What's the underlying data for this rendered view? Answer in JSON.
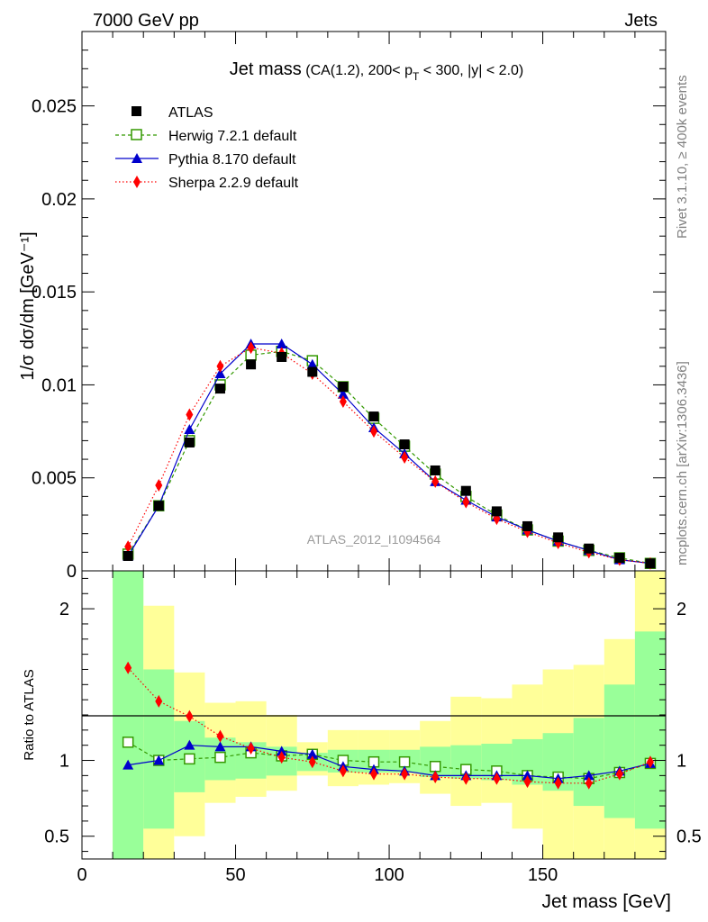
{
  "header": {
    "left": "7000 GeV pp",
    "right": "Jets"
  },
  "side_labels": {
    "rivet": "Rivet 3.1.10, ≥ 400k events",
    "mcplots": "mcplots.cern.ch [arXiv:1306.3436]"
  },
  "colors": {
    "atlas": "#000000",
    "herwig": "#339900",
    "pythia": "#0000cc",
    "sherpa": "#ff0000",
    "band_green": "#99ff99",
    "band_yellow": "#ffff99"
  },
  "chart_data": [
    {
      "type": "scatter",
      "title_main": "Jet mass",
      "title_cut_1": "(CA(1.2), 200< p",
      "title_cut_sub": "T",
      "title_cut_2": " < 300, |y| < 2.0)",
      "ylabel": "1/σ dσ/dm [GeV⁻¹]",
      "watermark": "ATLAS_2012_I1094564",
      "xlim": [
        0,
        190
      ],
      "ylim": [
        0,
        0.029
      ],
      "yticks": [
        {
          "v": 0,
          "label": "0"
        },
        {
          "v": 0.005,
          "label": "0.005"
        },
        {
          "v": 0.01,
          "label": "0.01"
        },
        {
          "v": 0.015,
          "label": "0.015"
        },
        {
          "v": 0.02,
          "label": "0.02"
        },
        {
          "v": 0.025,
          "label": "0.025"
        }
      ],
      "legend_position": "top-left",
      "x": [
        15,
        25,
        35,
        45,
        55,
        65,
        75,
        85,
        95,
        105,
        115,
        125,
        135,
        145,
        155,
        165,
        175,
        185
      ],
      "series": [
        {
          "name": "ATLAS",
          "style": "data",
          "values": [
            0.0008,
            0.0035,
            0.0069,
            0.0098,
            0.0111,
            0.0115,
            0.0107,
            0.0099,
            0.0083,
            0.0068,
            0.0054,
            0.0043,
            0.0032,
            0.0024,
            0.0018,
            0.0012,
            0.0007,
            0.0004
          ]
        },
        {
          "name": "Herwig 7.2.1 default",
          "style": "herwig",
          "values": [
            0.0009,
            0.0035,
            0.007,
            0.01,
            0.0116,
            0.0118,
            0.0113,
            0.0099,
            0.0082,
            0.0067,
            0.0052,
            0.004,
            0.003,
            0.0022,
            0.0016,
            0.0011,
            0.0007,
            0.0004
          ]
        },
        {
          "name": "Pythia 8.170 default",
          "style": "pythia",
          "values": [
            0.0008,
            0.0035,
            0.0076,
            0.0106,
            0.0122,
            0.0122,
            0.0111,
            0.0095,
            0.0077,
            0.0063,
            0.0048,
            0.0038,
            0.0029,
            0.0022,
            0.0016,
            0.0011,
            0.0006,
            0.0004
          ]
        },
        {
          "name": "Sherpa 2.2.9 default",
          "style": "sherpa",
          "values": [
            0.0013,
            0.0046,
            0.0084,
            0.011,
            0.012,
            0.0117,
            0.0106,
            0.0091,
            0.0075,
            0.0061,
            0.0048,
            0.0037,
            0.0028,
            0.0021,
            0.0015,
            0.001,
            0.0006,
            0.0004
          ]
        }
      ]
    },
    {
      "type": "line",
      "ylabel": "Ratio to ATLAS",
      "xlabel": "Jet mass [GeV]",
      "xlim": [
        0,
        190
      ],
      "ylim": [
        0.35,
        2.25
      ],
      "xticks": [
        {
          "v": 0,
          "label": "0"
        },
        {
          "v": 50,
          "label": "50"
        },
        {
          "v": 100,
          "label": "100"
        },
        {
          "v": 150,
          "label": "150"
        }
      ],
      "yticks": [
        {
          "v": 0.5,
          "label": "0.5"
        },
        {
          "v": 1,
          "label": "1"
        },
        {
          "v": 2,
          "label": "2"
        }
      ],
      "bins": [
        [
          10,
          20
        ],
        [
          20,
          30
        ],
        [
          30,
          40
        ],
        [
          40,
          50
        ],
        [
          50,
          60
        ],
        [
          60,
          70
        ],
        [
          70,
          80
        ],
        [
          80,
          90
        ],
        [
          90,
          100
        ],
        [
          100,
          110
        ],
        [
          110,
          120
        ],
        [
          120,
          130
        ],
        [
          130,
          140
        ],
        [
          140,
          150
        ],
        [
          150,
          160
        ],
        [
          160,
          170
        ],
        [
          170,
          180
        ],
        [
          180,
          190
        ]
      ],
      "band_green": [
        [
          0.35,
          2.25
        ],
        [
          0.55,
          1.6
        ],
        [
          0.79,
          1.26
        ],
        [
          0.87,
          1.15
        ],
        [
          0.88,
          1.12
        ],
        [
          0.9,
          1.09
        ],
        [
          0.93,
          1.05
        ],
        [
          0.92,
          1.07
        ],
        [
          0.92,
          1.07
        ],
        [
          0.92,
          1.07
        ],
        [
          0.89,
          1.09
        ],
        [
          0.88,
          1.1
        ],
        [
          0.87,
          1.11
        ],
        [
          0.84,
          1.14
        ],
        [
          0.8,
          1.18
        ],
        [
          0.7,
          1.28
        ],
        [
          0.62,
          1.5
        ],
        [
          0.55,
          1.85
        ]
      ],
      "band_yellow": [
        [
          0.35,
          2.25
        ],
        [
          0.35,
          2.02
        ],
        [
          0.5,
          1.58
        ],
        [
          0.72,
          1.38
        ],
        [
          0.76,
          1.39
        ],
        [
          0.8,
          1.3
        ],
        [
          0.9,
          1.12
        ],
        [
          0.83,
          1.2
        ],
        [
          0.84,
          1.2
        ],
        [
          0.85,
          1.2
        ],
        [
          0.78,
          1.26
        ],
        [
          0.7,
          1.42
        ],
        [
          0.72,
          1.41
        ],
        [
          0.55,
          1.5
        ],
        [
          0.35,
          1.6
        ],
        [
          0.35,
          1.63
        ],
        [
          0.35,
          1.8
        ],
        [
          0.35,
          2.25
        ]
      ],
      "x": [
        15,
        25,
        35,
        45,
        55,
        65,
        75,
        85,
        95,
        105,
        115,
        125,
        135,
        145,
        155,
        165,
        175,
        185
      ],
      "series": [
        {
          "name": "Herwig 7.2.1 default",
          "style": "herwig",
          "values": [
            1.12,
            1.0,
            1.01,
            1.02,
            1.05,
            1.03,
            1.04,
            1.0,
            0.99,
            0.99,
            0.96,
            0.94,
            0.93,
            0.9,
            0.89,
            0.88,
            0.92,
            0.98
          ]
        },
        {
          "name": "Pythia 8.170 default",
          "style": "pythia",
          "values": [
            0.97,
            1.0,
            1.1,
            1.09,
            1.09,
            1.06,
            1.04,
            0.96,
            0.94,
            0.93,
            0.9,
            0.9,
            0.9,
            0.9,
            0.88,
            0.9,
            0.93,
            0.98
          ]
        },
        {
          "name": "Sherpa 2.2.9 default",
          "style": "sherpa",
          "values": [
            1.61,
            1.39,
            1.29,
            1.16,
            1.08,
            1.02,
            0.99,
            0.93,
            0.91,
            0.91,
            0.89,
            0.88,
            0.88,
            0.86,
            0.85,
            0.85,
            0.91,
            0.99
          ]
        }
      ]
    }
  ]
}
